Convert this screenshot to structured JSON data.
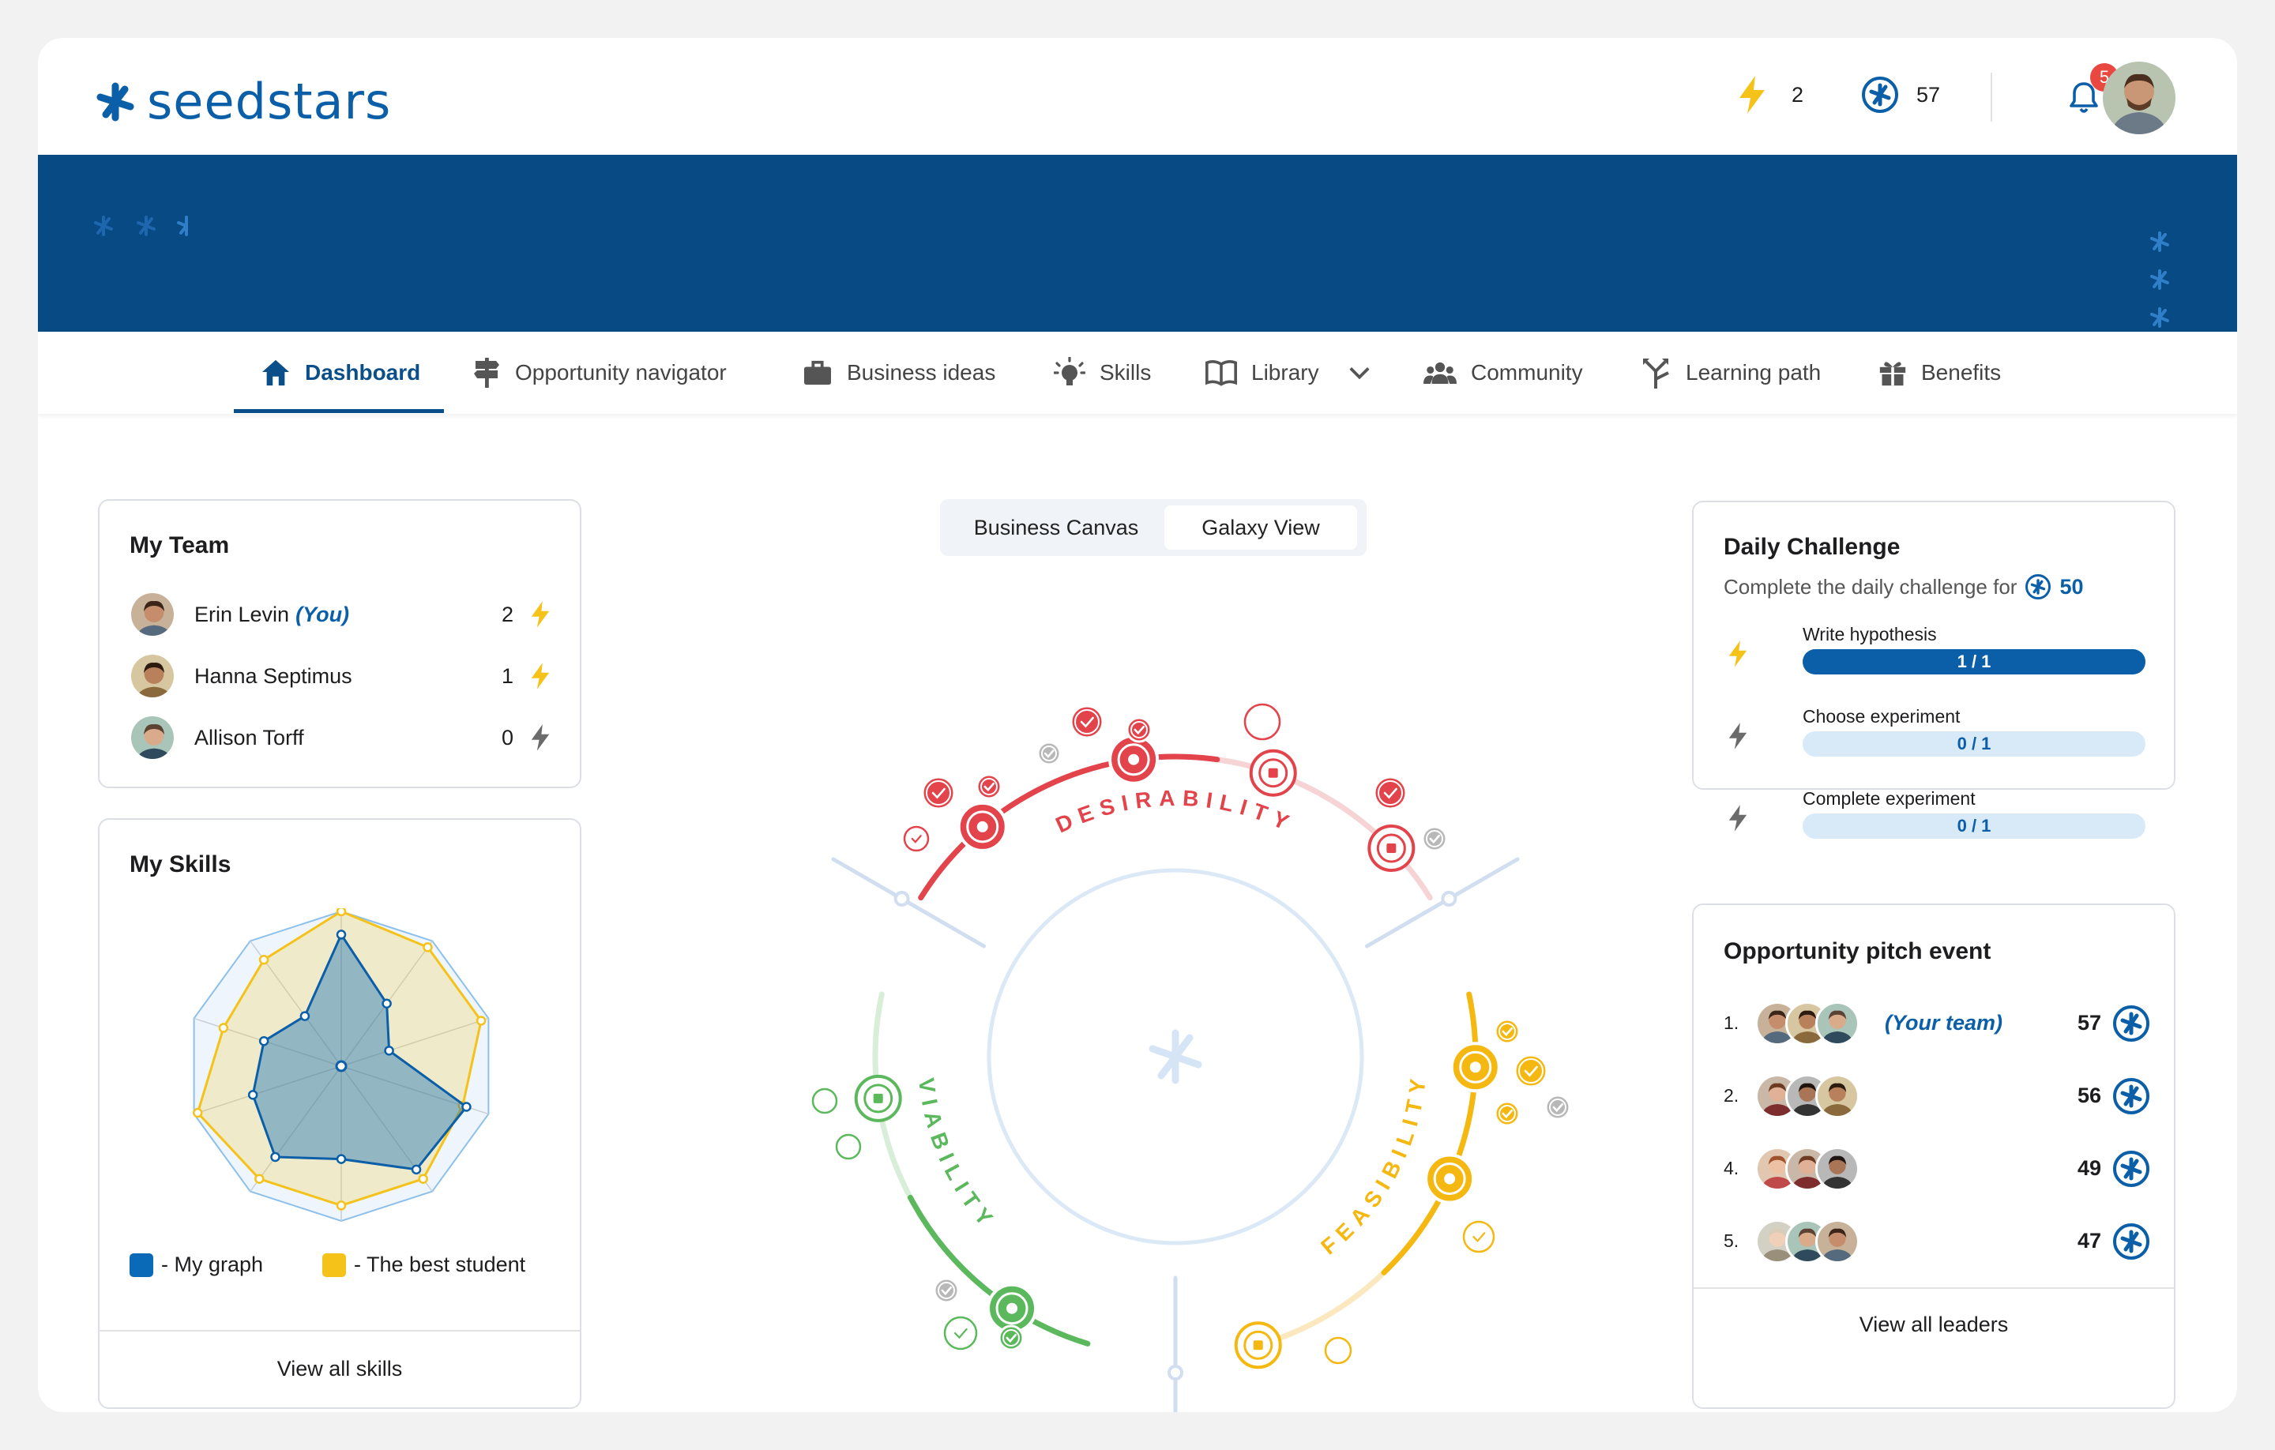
{
  "brand": {
    "name": "seedstars"
  },
  "header": {
    "energy_count": "2",
    "points_count": "57",
    "notifications_badge": "5"
  },
  "nav": {
    "items": [
      {
        "label": "Dashboard",
        "icon": "home-icon"
      },
      {
        "label": "Opportunity navigator",
        "icon": "signpost-icon"
      },
      {
        "label": "Business ideas",
        "icon": "briefcase-icon"
      },
      {
        "label": "Skills",
        "icon": "lightbulb-icon"
      },
      {
        "label": "Library",
        "icon": "book-icon"
      },
      {
        "label": "Community",
        "icon": "people-icon"
      },
      {
        "label": "Learning path",
        "icon": "arrows-split-icon"
      },
      {
        "label": "Benefits",
        "icon": "gift-icon"
      }
    ]
  },
  "team": {
    "title": "My Team",
    "members": [
      {
        "name": "Erin Levin",
        "you": "(You)",
        "score": "2",
        "bolt_color": "#f5c21a"
      },
      {
        "name": "Hanna Septimus",
        "score": "1",
        "bolt_color": "#f5c21a"
      },
      {
        "name": "Allison Torff",
        "score": "0",
        "bolt_color": "#6b6b6b"
      }
    ]
  },
  "skills": {
    "title": "My Skills",
    "legend_mine": "- My graph",
    "legend_best": "- The best student",
    "footer": "View all skills",
    "colors": {
      "mine": "#0b6ab8",
      "best": "#f5c21a"
    },
    "chart_data": {
      "type": "radar",
      "axes_count": 10,
      "levels": 4,
      "max": 4,
      "series": [
        {
          "values": [
            3.4,
            2.0,
            1.3,
            3.4,
            3.3,
            2.4,
            2.9,
            2.4,
            2.1,
            1.6
          ]
        },
        {
          "values": [
            4.0,
            3.8,
            3.8,
            3.3,
            3.6,
            3.6,
            3.6,
            3.9,
            3.2,
            3.4
          ]
        }
      ]
    }
  },
  "view_toggle": {
    "options": [
      "Business Canvas",
      "Galaxy View"
    ],
    "selected": "Galaxy View"
  },
  "galaxy": {
    "labels": {
      "desirability": "DESIRABILITY",
      "viability": "VIABILITY",
      "feasibility": "FEASIBILITY"
    },
    "colors": {
      "desirability": "#e3434b",
      "viability": "#5cb85c",
      "feasibility": "#f5b811",
      "neutral": "#d0def0"
    }
  },
  "daily": {
    "title": "Daily Challenge",
    "subtitle": "Complete the daily challenge for",
    "reward": "50",
    "tasks": [
      {
        "label": "Write hypothesis",
        "progress": "1 / 1",
        "fraction": 1.0,
        "done": true
      },
      {
        "label": "Choose  experiment",
        "progress": "0 / 1",
        "fraction": 0.0,
        "done": false
      },
      {
        "label": "Complete experiment",
        "progress": "0 / 1",
        "fraction": 0.0,
        "done": false
      }
    ]
  },
  "pitch": {
    "title": "Opportunity pitch event",
    "rows": [
      {
        "rank": "1.",
        "team_label": "(Your team)",
        "score": "57"
      },
      {
        "rank": "2.",
        "team_label": "",
        "score": "56"
      },
      {
        "rank": "4.",
        "team_label": "",
        "score": "49"
      },
      {
        "rank": "5.",
        "team_label": "",
        "score": "47"
      }
    ],
    "footer": "View all leaders"
  }
}
